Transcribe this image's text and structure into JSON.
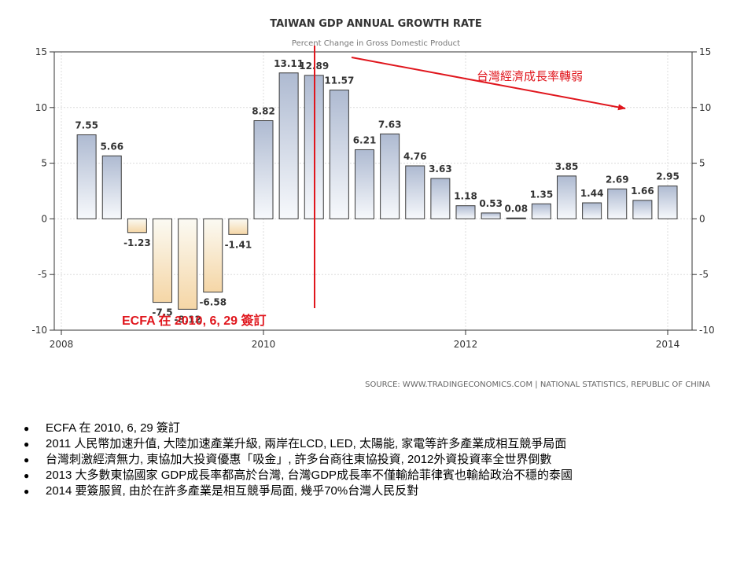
{
  "colors": {
    "positive_top": "#aebad1",
    "positive_bottom": "#f7f9fc",
    "negative_top": "#fbfaf3",
    "negative_bottom": "#f5d6a6",
    "bar_stroke": "#3a3a3a",
    "grid": "#dcdcdc",
    "annotation": "#e0161d"
  },
  "chart_data": {
    "type": "bar",
    "title": "TAIWAN GDP ANNUAL GROWTH RATE",
    "subtitle": "Percent Change in Gross Domestic Product",
    "source": "SOURCE: WWW.TRADINGECONOMICS.COM  |  NATIONAL STATISTICS, REPUBLIC OF CHINA",
    "x_ticks": [
      2008,
      2010,
      2012,
      2014
    ],
    "xlim": [
      2008,
      2014.1
    ],
    "y_ticks": [
      15,
      10,
      5,
      0,
      -5,
      -10
    ],
    "ylim": [
      -10,
      15
    ],
    "grid": true,
    "points": [
      {
        "x": 2008.25,
        "value": 7.55,
        "label": "7.55"
      },
      {
        "x": 2008.5,
        "value": 5.66,
        "label": "5.66"
      },
      {
        "x": 2008.75,
        "value": -1.23,
        "label": "-1.23"
      },
      {
        "x": 2009.0,
        "value": -7.5,
        "label": "-7.5"
      },
      {
        "x": 2009.25,
        "value": -8.12,
        "label": "-8.12"
      },
      {
        "x": 2009.5,
        "value": -6.58,
        "label": "-6.58"
      },
      {
        "x": 2009.75,
        "value": -1.41,
        "label": "-1.41"
      },
      {
        "x": 2010.0,
        "value": 8.82,
        "label": "8.82"
      },
      {
        "x": 2010.25,
        "value": 13.11,
        "label": "13.11"
      },
      {
        "x": 2010.5,
        "value": 12.89,
        "label": "12.89"
      },
      {
        "x": 2010.75,
        "value": 11.57,
        "label": "11.57"
      },
      {
        "x": 2011.0,
        "value": 6.21,
        "label": "6.21"
      },
      {
        "x": 2011.25,
        "value": 7.63,
        "label": "7.63"
      },
      {
        "x": 2011.5,
        "value": 4.76,
        "label": "4.76"
      },
      {
        "x": 2011.75,
        "value": 3.63,
        "label": "3.63"
      },
      {
        "x": 2012.0,
        "value": 1.18,
        "label": "1.18"
      },
      {
        "x": 2012.25,
        "value": 0.53,
        "label": "0.53"
      },
      {
        "x": 2012.5,
        "value": 0.08,
        "label": "0.08"
      },
      {
        "x": 2012.75,
        "value": 1.35,
        "label": "1.35"
      },
      {
        "x": 2013.0,
        "value": 3.85,
        "label": "3.85"
      },
      {
        "x": 2013.25,
        "value": 1.44,
        "label": "1.44"
      },
      {
        "x": 2013.5,
        "value": 2.69,
        "label": "2.69"
      },
      {
        "x": 2013.75,
        "value": 1.66,
        "label": "1.66"
      },
      {
        "x": 2014.0,
        "value": 2.95,
        "label": "2.95"
      }
    ],
    "annotations": {
      "trend_text": "台灣經濟成長率轉弱",
      "ecfa_text": "ECFA 在 2010, 6, 29 簽訂",
      "ecfa_line_x": 2010.5
    }
  },
  "notes": [
    "ECFA 在 2010, 6, 29 簽訂",
    "2011 人民幣加速升值, 大陸加速產業升級, 兩岸在LCD, LED, 太陽能, 家電等許多產業成相互競爭局面",
    "台灣刺激經濟無力, 東協加大投資優惠「吸金」, 許多台商往東協投資, 2012外資投資率全世界倒數",
    "2013 大多數東協國家 GDP成長率都高於台灣, 台灣GDP成長率不僅輸給菲律賓也輸給政治不穩的泰國",
    "2014 要簽服貿, 由於在許多產業是相互競爭局面, 幾乎70%台灣人民反對"
  ],
  "bullet_symbol": "●"
}
